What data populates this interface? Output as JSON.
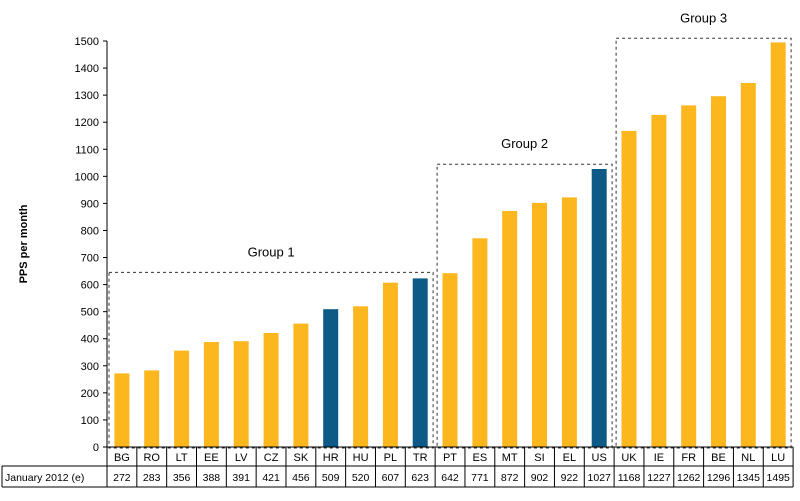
{
  "chart_data": {
    "type": "bar",
    "title": "",
    "xlabel": "",
    "ylabel": "PPS per month",
    "ylim": [
      0,
      1500
    ],
    "yticks": [
      0,
      100,
      200,
      300,
      400,
      500,
      600,
      700,
      800,
      900,
      1000,
      1100,
      1200,
      1300,
      1400,
      1500
    ],
    "grid": false,
    "legend": "none",
    "categories": [
      "BG",
      "RO",
      "LT",
      "EE",
      "LV",
      "CZ",
      "SK",
      "HR",
      "HU",
      "PL",
      "TR",
      "PT",
      "ES",
      "MT",
      "SI",
      "EL",
      "US",
      "UK",
      "IE",
      "FR",
      "BE",
      "NL",
      "LU"
    ],
    "series": [
      {
        "name": "January 2012 (e)",
        "values": [
          272,
          283,
          356,
          388,
          391,
          421,
          456,
          509,
          520,
          607,
          623,
          642,
          771,
          872,
          902,
          922,
          1027,
          1168,
          1227,
          1262,
          1296,
          1345,
          1495
        ]
      }
    ],
    "highlighted": [
      "HR",
      "TR",
      "US"
    ],
    "groups": [
      {
        "label": "Group 1",
        "members": [
          "BG",
          "RO",
          "LT",
          "EE",
          "LV",
          "CZ",
          "SK",
          "HR",
          "HU",
          "PL",
          "TR"
        ],
        "box_top": 645
      },
      {
        "label": "Group 2",
        "members": [
          "PT",
          "ES",
          "MT",
          "SI",
          "EL",
          "US"
        ],
        "box_top": 1045
      },
      {
        "label": "Group 3",
        "members": [
          "UK",
          "IE",
          "FR",
          "BE",
          "NL",
          "LU"
        ],
        "box_top": 1510
      }
    ],
    "table": {
      "row_label": "January 2012 (e)",
      "values": [
        "272",
        "283",
        "356",
        "388",
        "391",
        "421",
        "456",
        "509",
        "520",
        "607",
        "623",
        "642",
        "771",
        "872",
        "902",
        "922",
        "1027",
        "1168",
        "1227",
        "1262",
        "1296",
        "1345",
        "1495"
      ]
    },
    "colors": {
      "default": "#FDB71E",
      "highlight": "#0C5A85",
      "axis": "#000000",
      "box": "#333333"
    }
  }
}
